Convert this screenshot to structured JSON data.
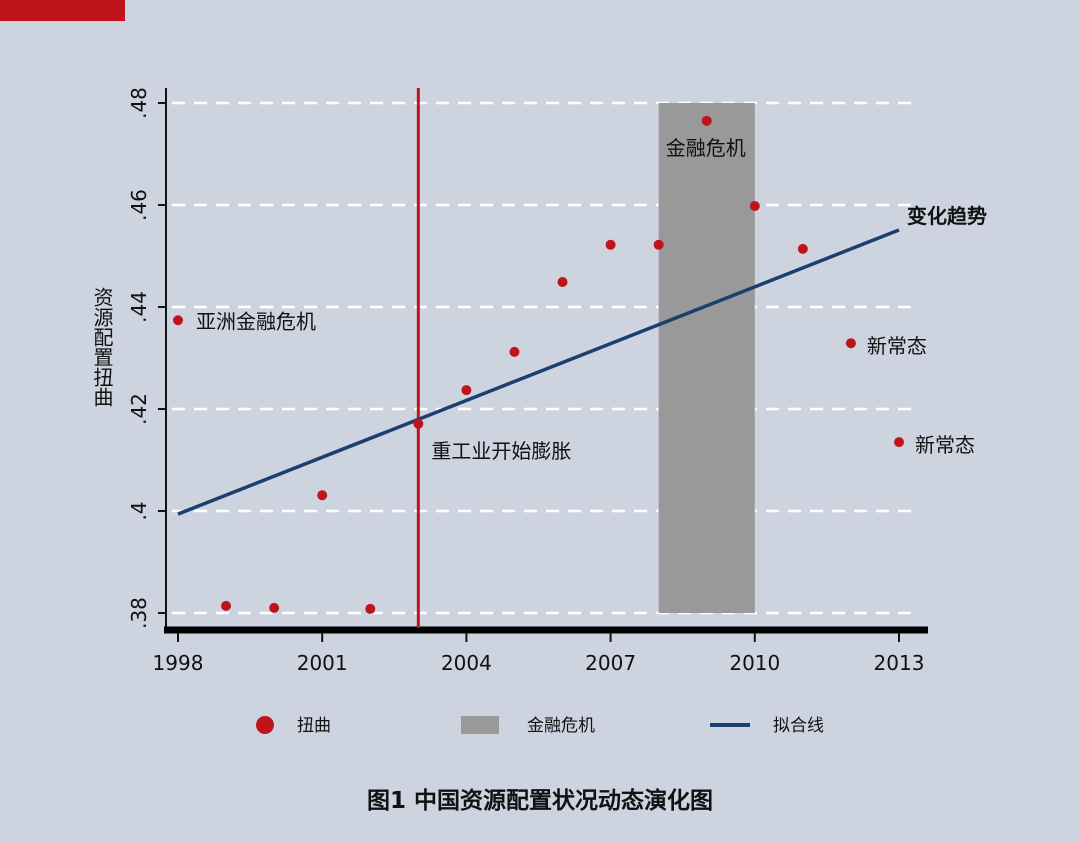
{
  "chart_data": {
    "type": "scatter",
    "title": "图1  中国资源配置状况动态演化图",
    "xlabel": "",
    "ylabel": "资源配置扭曲",
    "xlim": [
      1998,
      2013
    ],
    "ylim": [
      0.38,
      0.48
    ],
    "xticks": [
      1998,
      2001,
      2004,
      2007,
      2010,
      2013
    ],
    "xtick_labels": [
      "1998",
      "2001",
      "2004",
      "2007",
      "2010",
      "2013"
    ],
    "yticks": [
      0.38,
      0.4,
      0.42,
      0.44,
      0.46,
      0.48
    ],
    "ytick_labels": [
      ".38",
      ".4",
      ".42",
      ".44",
      ".46",
      ".48"
    ],
    "grid": "horizontal dashed",
    "series": [
      {
        "name": "扭曲",
        "type": "scatter",
        "color": "#c0141c",
        "x": [
          1998,
          1999,
          2000,
          2001,
          2002,
          2003,
          2004,
          2005,
          2006,
          2007,
          2008,
          2009,
          2010,
          2011,
          2012,
          2013
        ],
        "y": [
          0.4374,
          0.3814,
          0.381,
          0.4031,
          0.3808,
          0.4171,
          0.4237,
          0.4312,
          0.4449,
          0.4522,
          0.4522,
          0.4765,
          0.4598,
          0.4514,
          0.4329,
          0.4135
        ]
      },
      {
        "name": "拟合线",
        "type": "line",
        "color": "#1c3f6e",
        "x": [
          1998,
          2013
        ],
        "y": [
          0.3994,
          0.4551
        ]
      },
      {
        "name": "金融危机",
        "type": "band",
        "color": "#999999",
        "x": [
          2008,
          2010
        ],
        "y": [
          0.38,
          0.48
        ]
      }
    ],
    "vline": {
      "x": 2003,
      "color": "#c0141c"
    },
    "annotations": [
      {
        "text": "亚洲金融危机",
        "x": 1998,
        "y": 0.4374
      },
      {
        "text": "重工业开始膨胀",
        "x": 2003,
        "y": 0.4171
      },
      {
        "text": "金融危机",
        "x": 2009,
        "y": 0.4765
      },
      {
        "text": "变化趋势",
        "x": 2013,
        "y": 0.4551
      },
      {
        "text": "新常态",
        "x": 2012,
        "y": 0.4329
      },
      {
        "text": "新常态",
        "x": 2013,
        "y": 0.4135
      }
    ],
    "legend": {
      "placement": "bottom",
      "entries": [
        "扭曲",
        "金融危机",
        "拟合线"
      ]
    }
  }
}
